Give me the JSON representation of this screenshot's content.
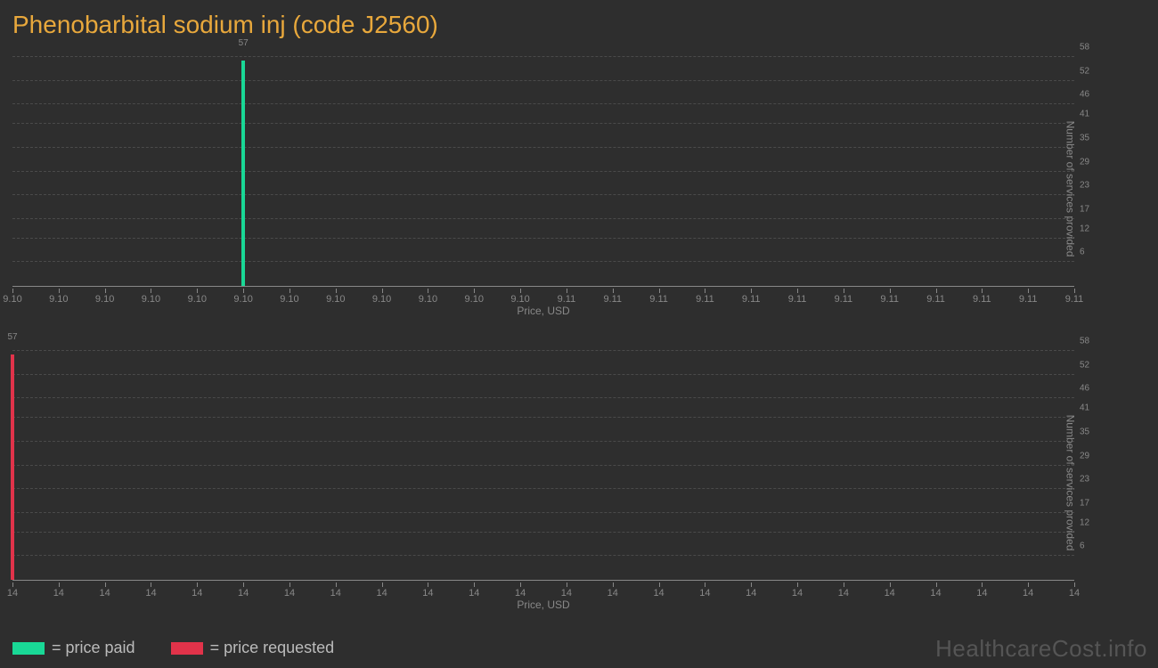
{
  "title": "Phenobarbital sodium inj (code J2560)",
  "background_color": "#2e2e2e",
  "title_color": "#e8a83c",
  "title_fontsize": 28,
  "axis_text_color": "#888888",
  "grid_color": "#4a4a4a",
  "axis_line_color": "#888888",
  "xaxis_title": "Price, USD",
  "yaxis_title": "Number of services provided",
  "yticks": [
    6,
    12,
    17,
    23,
    29,
    35,
    41,
    46,
    52,
    58
  ],
  "ylim": [
    0,
    58
  ],
  "panels": [
    {
      "type": "bar",
      "series_name": "price_paid",
      "bar_color": "#19d896",
      "bars": [
        {
          "x_index": 5,
          "value": 57,
          "label": "57"
        }
      ],
      "xtick_count": 24,
      "xtick_labels": [
        "9.10",
        "9.10",
        "9.10",
        "9.10",
        "9.10",
        "9.10",
        "9.10",
        "9.10",
        "9.10",
        "9.10",
        "9.10",
        "9.10",
        "9.11",
        "9.11",
        "9.11",
        "9.11",
        "9.11",
        "9.11",
        "9.11",
        "9.11",
        "9.11",
        "9.11",
        "9.11",
        "9.11"
      ]
    },
    {
      "type": "bar",
      "series_name": "price_requested",
      "bar_color": "#e1334a",
      "bars": [
        {
          "x_index": 0,
          "value": 57,
          "label": "57"
        }
      ],
      "xtick_count": 24,
      "xtick_labels": [
        "14",
        "14",
        "14",
        "14",
        "14",
        "14",
        "14",
        "14",
        "14",
        "14",
        "14",
        "14",
        "14",
        "14",
        "14",
        "14",
        "14",
        "14",
        "14",
        "14",
        "14",
        "14",
        "14",
        "14"
      ]
    }
  ],
  "legend": [
    {
      "color": "#19d896",
      "label": "= price paid"
    },
    {
      "color": "#e1334a",
      "label": "= price requested"
    }
  ],
  "watermark": "HealthcareCost.info"
}
